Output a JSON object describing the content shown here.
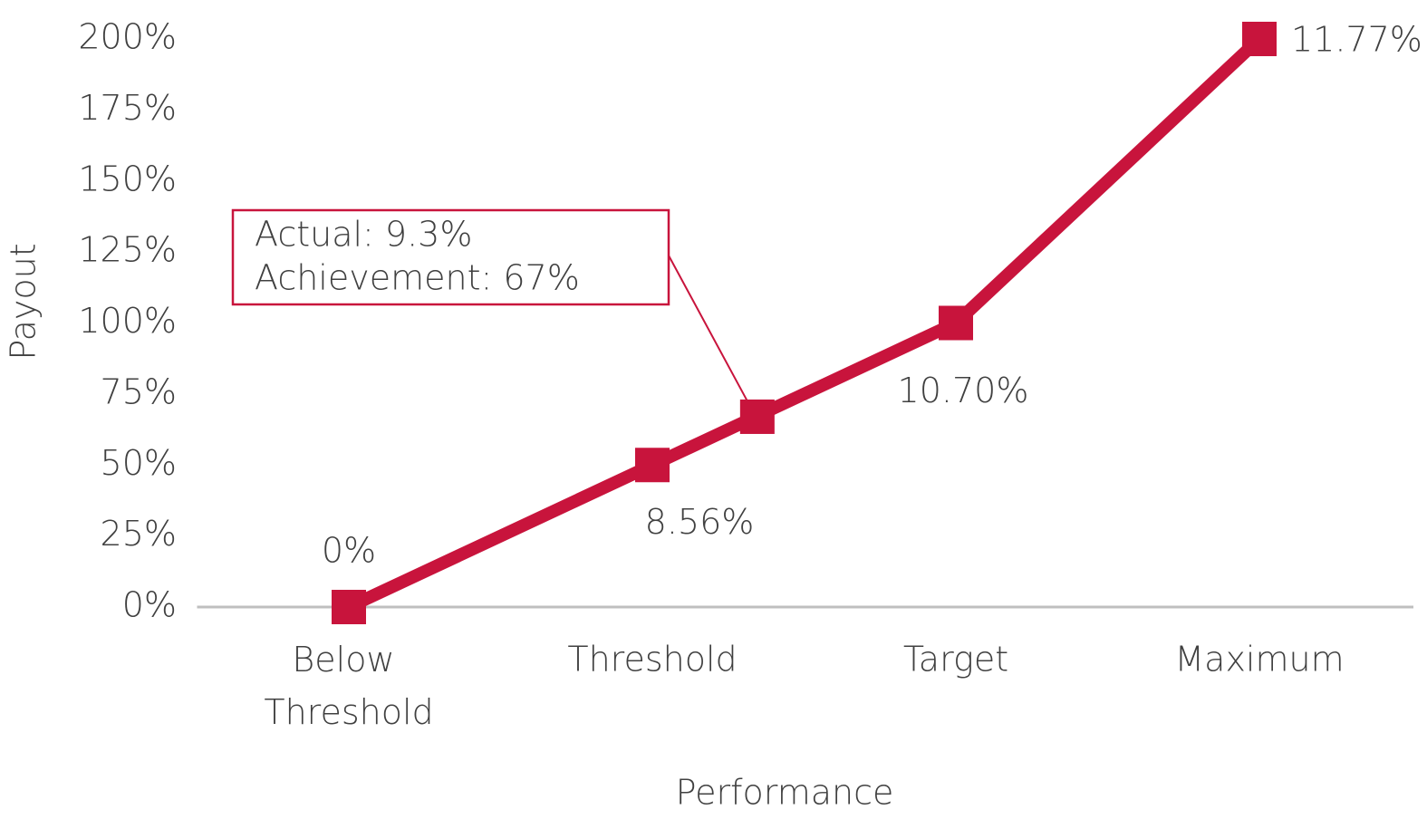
{
  "chart_data": {
    "type": "line",
    "x_label": "Performance",
    "y_label": "Payout",
    "categories": [
      "Below Threshold",
      "Threshold",
      "Target",
      "Maximum"
    ],
    "series": [
      {
        "name": "Payout",
        "color": "#c8143c",
        "values": [
          0,
          50,
          100,
          200
        ]
      }
    ],
    "performance": [
      0,
      8.56,
      10.7,
      11.77
    ],
    "performance_labels": [
      "0%",
      "8.56%",
      "10.70%",
      "11.77%"
    ],
    "ylim": [
      0,
      200
    ],
    "yticks": [
      {
        "value": 0,
        "label": "0%"
      },
      {
        "value": 25,
        "label": "25%"
      },
      {
        "value": 50,
        "label": "50%"
      },
      {
        "value": 75,
        "label": "75%"
      },
      {
        "value": 100,
        "label": "100%"
      },
      {
        "value": 125,
        "label": "125%"
      },
      {
        "value": 150,
        "label": "150%"
      },
      {
        "value": 175,
        "label": "175%"
      },
      {
        "value": 200,
        "label": "200%"
      }
    ],
    "annotation": {
      "lines": [
        "Actual: 9.3%",
        "Achievement: 67%"
      ],
      "performance": 9.3,
      "payout": 67
    }
  }
}
